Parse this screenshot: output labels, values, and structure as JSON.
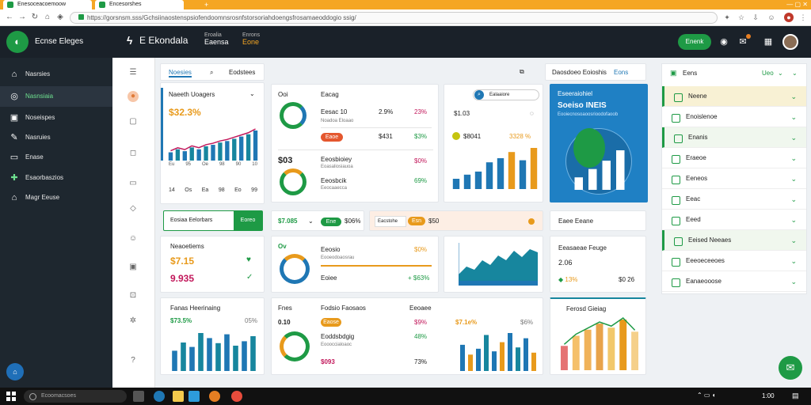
{
  "browser": {
    "tabs": [
      {
        "label": "Enesoceacoemoow"
      },
      {
        "label": "Encesorshes"
      }
    ],
    "url": "https://gorsnsm.sss/Gchsiinaostenspsiofendoomnsrosnfstorsoriahdoengsfrosamaeoddogio ssig/",
    "tab_new": "+"
  },
  "header": {
    "logo_text": "",
    "app_name": "Ecnse Eleges",
    "brand": "E Ekondala",
    "nav": [
      {
        "label": "Eroalia",
        "sub": "Eaensa"
      },
      {
        "label": "Enrons",
        "sub": "Eone"
      }
    ],
    "button_label": "Enenk"
  },
  "sidebar": {
    "items": [
      {
        "icon": "home-icon",
        "label": "Nasrsies"
      },
      {
        "icon": "settings-icon",
        "label": "Nasnsiaia"
      },
      {
        "icon": "inbox-icon",
        "label": "Noseispes"
      },
      {
        "icon": "pencil-icon",
        "label": "Nasruies"
      },
      {
        "icon": "folder-icon",
        "label": "Enase"
      },
      {
        "icon": "puzzle-icon",
        "label": "Esaorbaszios"
      },
      {
        "icon": "building-icon",
        "label": "Magr Eeuse"
      }
    ],
    "fab": "⌂"
  },
  "tabs_top": {
    "labels": [
      "Noesies",
      "Eodstees",
      "Daosdoeo Eoioshis",
      "Eons"
    ]
  },
  "card1": {
    "title": "Naeeth Uoagers",
    "value": "$32.3%",
    "xlabels": [
      "Eu",
      "95",
      "Oe",
      "98",
      "90",
      "10"
    ],
    "xlabels2": [
      "14",
      "Os",
      "Ea",
      "98",
      "Eo",
      "99"
    ],
    "bars": [
      22,
      30,
      25,
      35,
      30,
      38,
      42,
      48,
      52,
      58,
      64,
      70,
      80
    ]
  },
  "card2": {
    "label_a": "Ooi",
    "label_b": "Eacag",
    "r1": {
      "title": "Eesac 10",
      "sub": "Noadoa Eloaao",
      "v1": "2.9%",
      "v2": "23%"
    },
    "r2": {
      "pill": "Eaoe",
      "v1": "$431",
      "v2": "$3%"
    },
    "r3": {
      "big": "$03",
      "title": "Eeosbioiey",
      "sub": "Eoasaliosiauoa",
      "v2": "$0%"
    },
    "r4": {
      "title": "Eeosbcik",
      "sub": "Eeocaaecca",
      "v2": "69%"
    }
  },
  "card3": {
    "search": "Ealaaiore",
    "val": "$1.03",
    "pill_val": "$8041",
    "pct": "3328 %",
    "bars": [
      20,
      28,
      34,
      52,
      60,
      72,
      56,
      80
    ]
  },
  "card4": {
    "title": "Eseeraiohiel",
    "value": "Soeiso INEIS",
    "sub": "Eooiecnosoaoosrioodofaoob",
    "bars": [
      30,
      50,
      70,
      95
    ]
  },
  "row2": {
    "tabs": [
      "Eosiaa Eelorbars",
      "Eoreo"
    ],
    "v1": "$7.085",
    "pill": "Ene",
    "v2": "$06%",
    "search": "Eacstohe",
    "pill2": "Esn",
    "v3": "$50",
    "right": "Eaee Eeane"
  },
  "card5": {
    "title": "Neaoetiems",
    "v1": "$7.15",
    "v2": "9.935"
  },
  "card6": {
    "ov": "Ov",
    "title": "Eeosio",
    "sub": "Eooeodoaosrau",
    "pct": "$0%",
    "label": "Eoiee",
    "pct2": "+ $63%"
  },
  "card7": {
    "title": "Eeasaeae Feuge",
    "v1": "2.06",
    "v2": "13%",
    "v3": "$0 26"
  },
  "card8": {
    "title": "Fanas Heerinaing",
    "pct": "$73.5%",
    "tag": "05%",
    "bars": [
      32,
      45,
      38,
      60,
      52,
      44,
      58,
      40,
      47,
      55
    ]
  },
  "card9": {
    "c1": "Fnes",
    "c2": "Fodsio Faosaos",
    "c3": "Eeoaee",
    "v1": "0.10",
    "pill": "Eaose",
    "pct": "$9%",
    "t2": "Eoddsbdgig",
    "sub2": "Eoooccialoaoc",
    "pct2": "48%",
    "v3": "$093",
    "pct3": "73%",
    "big": "$7.1e%",
    "tag": "$6%",
    "bars": [
      40,
      25,
      34,
      55,
      30,
      44,
      58,
      36,
      50,
      28
    ]
  },
  "card10": {
    "title": "Ferosd Gieiag",
    "bars": [
      24,
      34,
      40,
      46,
      42,
      50,
      38
    ]
  },
  "rpanel": {
    "title": "Eens",
    "head_tag": "Ueo",
    "items": [
      {
        "label": "Neene",
        "active": true
      },
      {
        "label": "Enoislenoe",
        "active": false
      },
      {
        "label": "Enanis",
        "active": true
      },
      {
        "label": "Eraeoe",
        "active": false
      },
      {
        "label": "Eeneos",
        "active": false
      },
      {
        "label": "Eeac",
        "active": false
      },
      {
        "label": "Eeed",
        "active": false
      },
      {
        "label": "Eeised Neeaes",
        "active": true
      },
      {
        "label": "Eeeoeceeoes",
        "active": false
      },
      {
        "label": "Eanaeooose",
        "active": false
      }
    ]
  },
  "taskbar": {
    "search": "Ecoomacsoes",
    "time": "1:00"
  },
  "colors": {
    "green": "#1e9a45",
    "blue": "#1f77b4",
    "orange": "#e89a1c",
    "dark": "#1a2129"
  }
}
